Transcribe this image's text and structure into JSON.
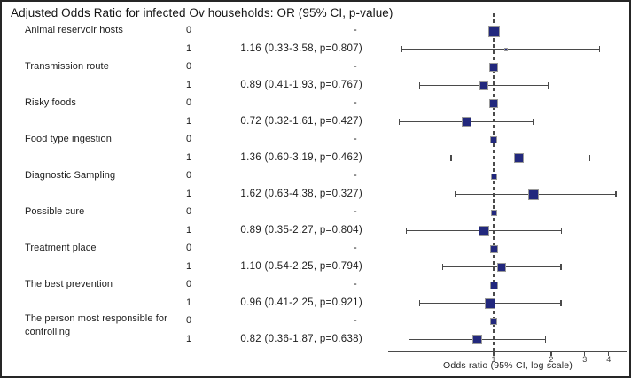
{
  "chart_data": {
    "type": "scatter",
    "variant": "forest-plot",
    "title": "Adjusted Odds Ratio for infected Ov households: OR (95% CI, p-value)",
    "xlabel": "Odds ratio (95% CI, log scale)",
    "x_scale": "log",
    "x_ticks": [
      1,
      2,
      3,
      4
    ],
    "x_range": [
      0.28,
      5.0
    ],
    "reference_line": 1,
    "marker_color": "#22287d",
    "line_color": "#4a4a4a",
    "rows": [
      {
        "group": "Animal reservoir hosts",
        "level": "0",
        "value": "-",
        "or": 1,
        "size": 13
      },
      {
        "level": "1",
        "value": "1.16 (0.33-3.58, p=0.807)",
        "or": 1.16,
        "lo": 0.33,
        "hi": 3.58,
        "p": 0.807,
        "size": 4
      },
      {
        "group": "Transmission route",
        "level": "0",
        "value": "-",
        "or": 1,
        "size": 10
      },
      {
        "level": "1",
        "value": "0.89 (0.41-1.93, p=0.767)",
        "or": 0.89,
        "lo": 0.41,
        "hi": 1.93,
        "p": 0.767,
        "size": 10
      },
      {
        "group": "Risky foods",
        "level": "0",
        "value": "-",
        "or": 1,
        "size": 10
      },
      {
        "level": "1",
        "value": "0.72 (0.32-1.61, p=0.427)",
        "or": 0.72,
        "lo": 0.32,
        "hi": 1.61,
        "p": 0.427,
        "size": 11
      },
      {
        "group": "Food type ingestion",
        "level": "0",
        "value": "-",
        "or": 1,
        "size": 8
      },
      {
        "level": "1",
        "value": "1.36 (0.60-3.19, p=0.462)",
        "or": 1.36,
        "lo": 0.6,
        "hi": 3.19,
        "p": 0.462,
        "size": 11
      },
      {
        "group": "Diagnostic Sampling",
        "level": "0",
        "value": "-",
        "or": 1,
        "size": 7
      },
      {
        "level": "1",
        "value": "1.62 (0.63-4.38, p=0.327)",
        "or": 1.62,
        "lo": 0.63,
        "hi": 4.38,
        "p": 0.327,
        "size": 12
      },
      {
        "group": "Possible cure",
        "level": "0",
        "value": "-",
        "or": 1,
        "size": 7
      },
      {
        "level": "1",
        "value": "0.89 (0.35-2.27, p=0.804)",
        "or": 0.89,
        "lo": 0.35,
        "hi": 2.27,
        "p": 0.804,
        "size": 12
      },
      {
        "group": "Treatment place",
        "level": "0",
        "value": "-",
        "or": 1,
        "size": 9
      },
      {
        "level": "1",
        "value": "1.10 (0.54-2.25, p=0.794)",
        "or": 1.1,
        "lo": 0.54,
        "hi": 2.25,
        "p": 0.794,
        "size": 10
      },
      {
        "group": "The best prevention",
        "level": "0",
        "value": "-",
        "or": 1,
        "size": 9
      },
      {
        "level": "1",
        "value": "0.96 (0.41-2.25, p=0.921)",
        "or": 0.96,
        "lo": 0.41,
        "hi": 2.25,
        "p": 0.921,
        "size": 12
      },
      {
        "group": "The person most responsible for controlling",
        "two_line": true,
        "level": "0",
        "value": "-",
        "or": 1,
        "size": 8
      },
      {
        "level": "1",
        "value": "0.82 (0.36-1.87, p=0.638)",
        "or": 0.82,
        "lo": 0.36,
        "hi": 1.87,
        "p": 0.638,
        "size": 11
      }
    ]
  }
}
